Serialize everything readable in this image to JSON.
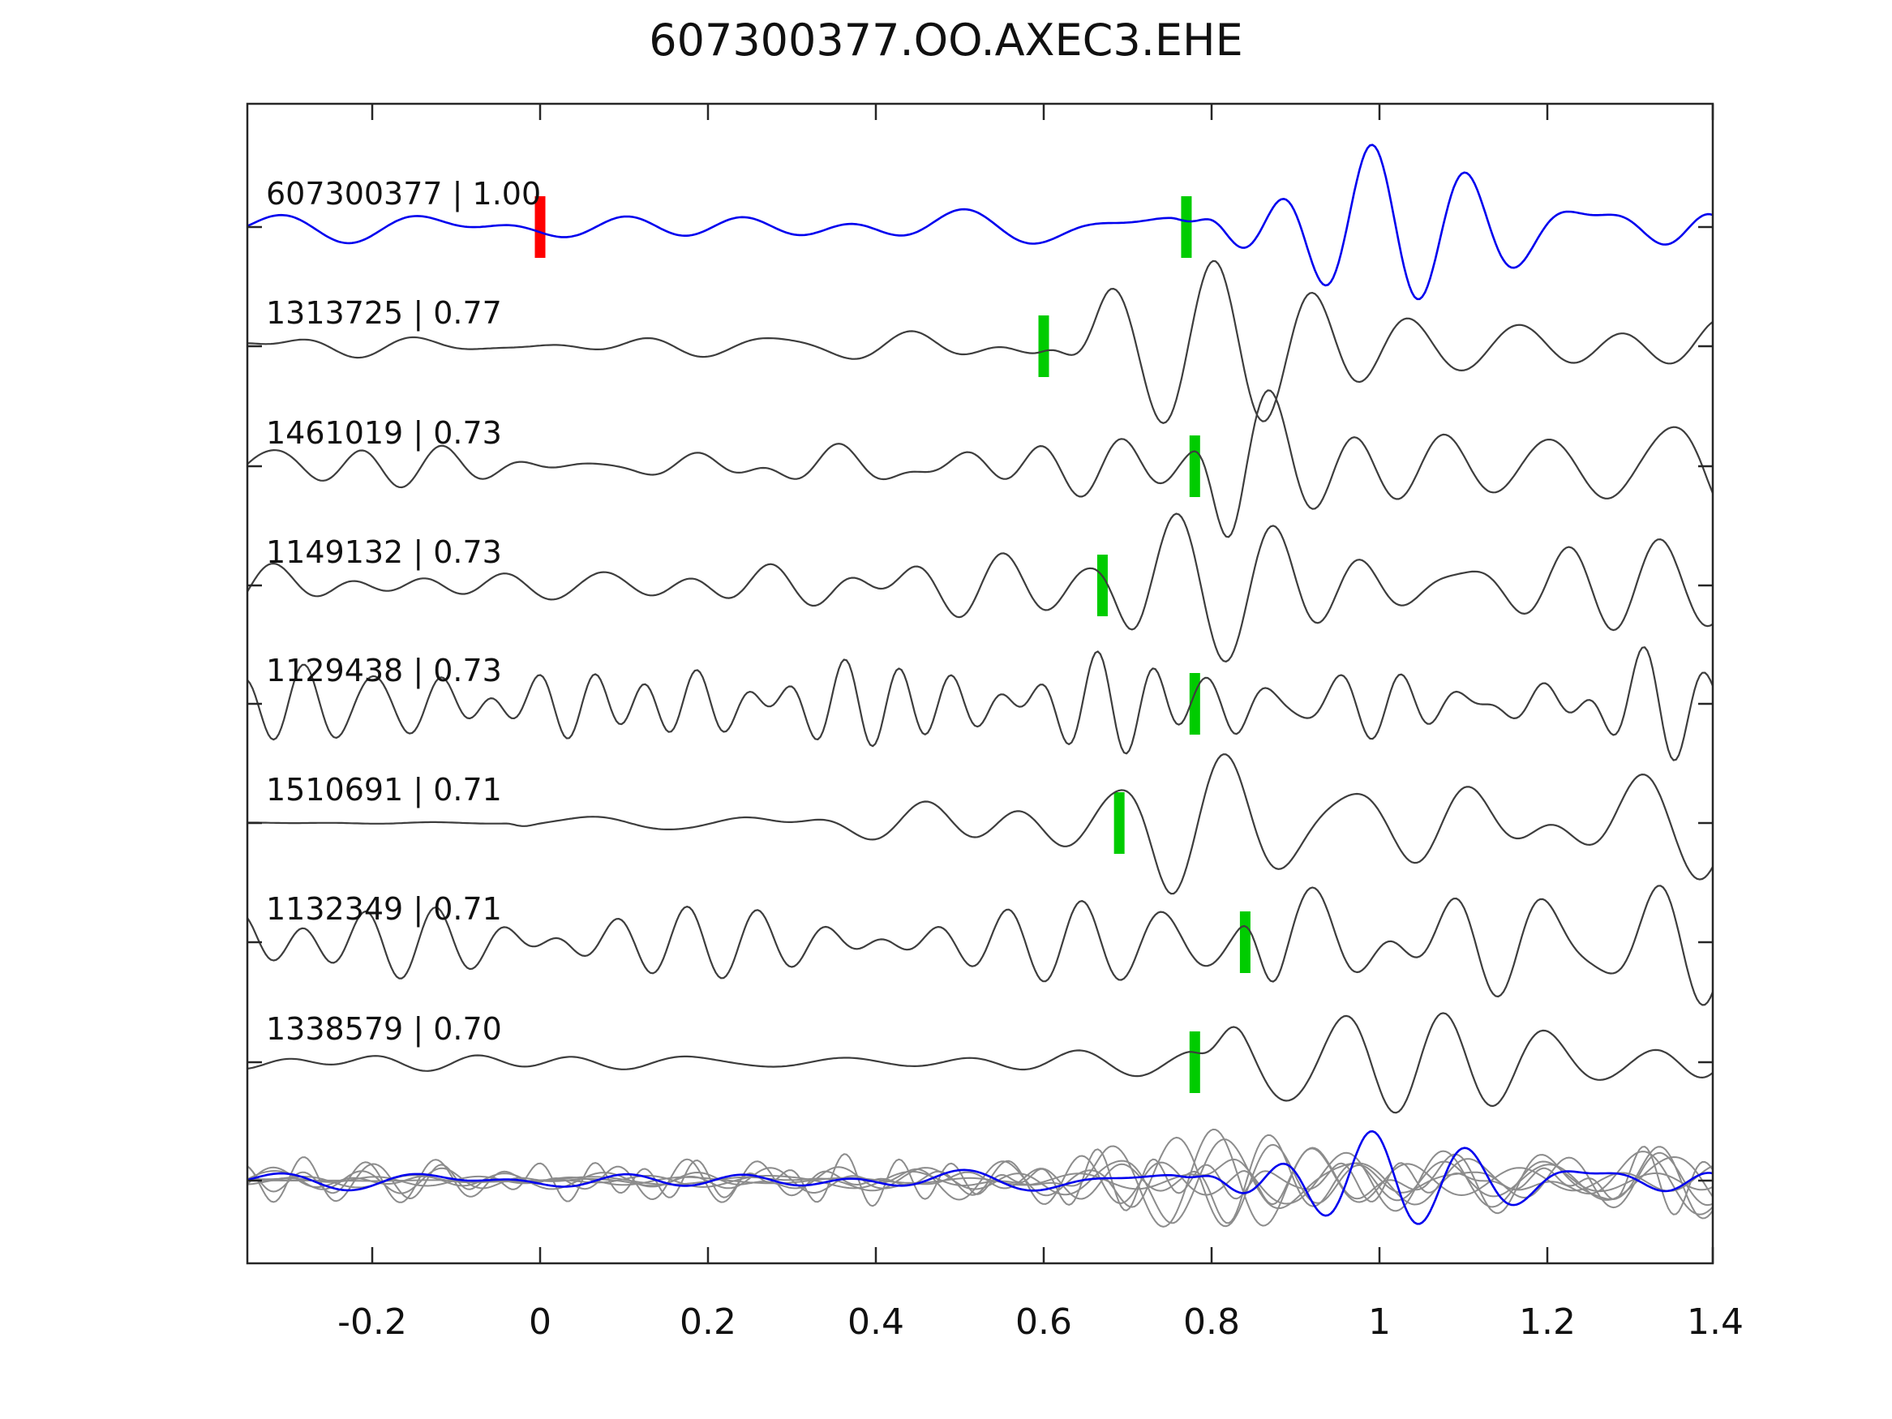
{
  "chart_data": {
    "type": "line",
    "title": "607300377.OO.AXEC3.EHE",
    "xlabel": "",
    "ylabel": "",
    "xlim": [
      -0.349,
      1.397
    ],
    "grid": false,
    "legend": "none",
    "x_axis": {
      "ticks": [
        -0.2,
        0,
        0.2,
        0.4,
        0.6,
        0.8,
        1,
        1.2,
        1.4
      ],
      "tick_labels": [
        "-0.2",
        "0",
        "0.2",
        "0.4",
        "0.6",
        "0.8",
        "1",
        "1.2",
        "1.4"
      ]
    },
    "marker_colors": {
      "pick": "#00cc00",
      "origin": "#ff0000"
    },
    "line_colors": {
      "template": "#0000ee",
      "event": "#3d3d3d",
      "overlay": "#8c8c8c"
    },
    "axis_color": "#262626",
    "text_color": "#111111",
    "traces": [
      {
        "id": "607300377",
        "label": "607300377 | 1.00",
        "correlation": 1.0,
        "role": "template",
        "pick_time": 0.77,
        "origin_time": 0.0,
        "color": "#0000ee",
        "waveform": {
          "seed": 101,
          "base_amp": 13,
          "f_lo": 3.5,
          "f_hi": 8,
          "onset": 0.75,
          "rise": 0.07,
          "burst_amp": 64,
          "bf_lo": 7,
          "bf_hi": 12,
          "burst_center": 0.96,
          "burst_width": 0.12,
          "tail": 0.32
        }
      },
      {
        "id": "1313725",
        "label": "1313725 | 0.77",
        "correlation": 0.77,
        "role": "event",
        "pick_time": 0.6,
        "color": "#3d3d3d",
        "waveform": {
          "seed": 202,
          "base_amp": 13,
          "f_lo": 4.5,
          "f_hi": 10,
          "onset": 0.59,
          "rise": 0.09,
          "burst_amp": 72,
          "bf_lo": 6.5,
          "bf_hi": 10,
          "burst_center": 0.88,
          "burst_width": 0.13,
          "tail": 0.42,
          "grow": {
            "from": 0.2,
            "to": 0.6,
            "mult": 1.5
          }
        }
      },
      {
        "id": "1461019",
        "label": "1461019 | 0.73",
        "correlation": 0.73,
        "role": "event",
        "pick_time": 0.78,
        "color": "#3d3d3d",
        "waveform": {
          "seed": 303,
          "base_amp": 22,
          "f_lo": 5,
          "f_hi": 13,
          "onset": 0.77,
          "rise": 0.07,
          "burst_amp": 78,
          "bf_lo": 6,
          "bf_hi": 10,
          "burst_center": 0.88,
          "burst_width": 0.12,
          "tail": 0.45
        }
      },
      {
        "id": "1149132",
        "label": "1149132 | 0.73",
        "correlation": 0.73,
        "role": "event",
        "pick_time": 0.67,
        "color": "#3d3d3d",
        "waveform": {
          "seed": 404,
          "base_amp": 20,
          "f_lo": 5,
          "f_hi": 12,
          "onset": 0.65,
          "rise": 0.07,
          "burst_amp": 76,
          "bf_lo": 6.5,
          "bf_hi": 10.5,
          "burst_center": 0.82,
          "burst_width": 0.12,
          "tail": 0.4
        }
      },
      {
        "id": "1129438",
        "label": "1129438 | 0.73",
        "correlation": 0.73,
        "role": "event",
        "pick_time": 0.78,
        "color": "#3d3d3d",
        "waveform": {
          "seed": 505,
          "base_amp": 40,
          "f_lo": 9,
          "f_hi": 17,
          "onset": 0.77,
          "rise": 0.06,
          "burst_amp": 34,
          "bf_lo": 8,
          "bf_hi": 14,
          "burst_center": 0.85,
          "burst_width": 0.12,
          "tail": 0.5
        }
      },
      {
        "id": "1510691",
        "label": "1510691 | 0.71",
        "correlation": 0.71,
        "role": "event",
        "pick_time": 0.69,
        "color": "#3d3d3d",
        "waveform": {
          "seed": 606,
          "base_amp": 12,
          "f_lo": 4.5,
          "f_hi": 10,
          "flat_until": -0.04,
          "onset": 0.68,
          "rise": 0.08,
          "burst_amp": 74,
          "bf_lo": 6,
          "bf_hi": 10,
          "burst_center": 0.9,
          "burst_width": 0.13,
          "tail": 0.38,
          "grow": {
            "from": 0,
            "to": 0.5,
            "mult": 2.2
          }
        }
      },
      {
        "id": "1132349",
        "label": "1132349 | 0.71",
        "correlation": 0.71,
        "role": "event",
        "pick_time": 0.84,
        "color": "#3d3d3d",
        "waveform": {
          "seed": 707,
          "base_amp": 27,
          "f_lo": 7,
          "f_hi": 14,
          "onset": 0.83,
          "rise": 0.06,
          "burst_amp": 80,
          "bf_lo": 6.5,
          "bf_hi": 11,
          "burst_center": 0.92,
          "burst_width": 0.12,
          "tail": 0.45
        }
      },
      {
        "id": "1338579",
        "label": "1338579 | 0.70",
        "correlation": 0.7,
        "role": "event",
        "pick_time": 0.78,
        "color": "#3d3d3d",
        "waveform": {
          "seed": 808,
          "base_amp": 11,
          "f_lo": 4.5,
          "f_hi": 10,
          "onset": 0.77,
          "rise": 0.07,
          "burst_amp": 66,
          "bf_lo": 7,
          "bf_hi": 11,
          "burst_center": 0.87,
          "burst_width": 0.12,
          "tail": 0.36
        }
      }
    ],
    "overlay_row": {
      "description": "all event traces overlaid in gray with template in blue",
      "includes_template": true,
      "scale": 0.6
    }
  }
}
